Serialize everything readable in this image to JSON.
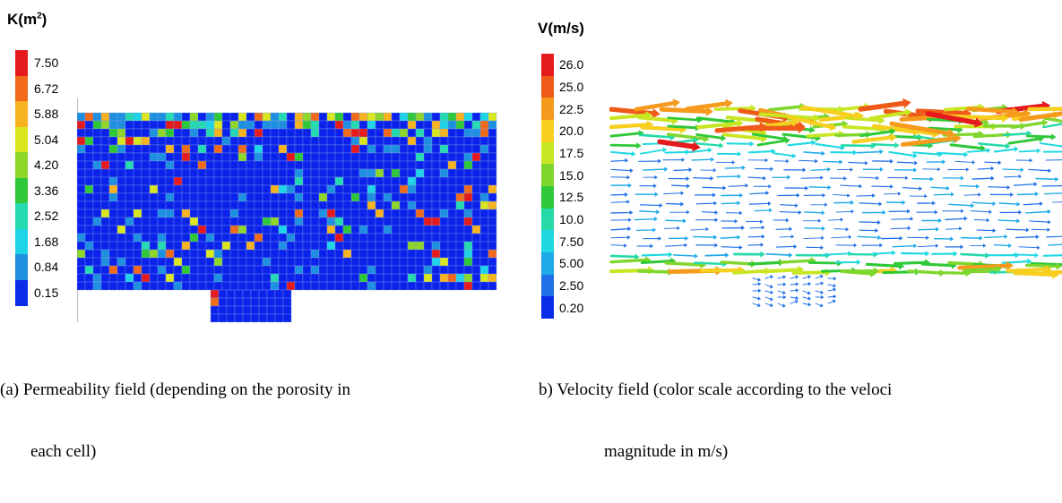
{
  "panel_a": {
    "unit_label": "K(m",
    "unit_superscript": "2",
    "unit_close": ")",
    "colorbar_labels": [
      "7.50",
      "6.72",
      "5.88",
      "5.04",
      "4.20",
      "3.36",
      "2.52",
      "1.68",
      "0.84",
      "0.15"
    ],
    "colorbar_colors": [
      "#e41a1c",
      "#f06a1a",
      "#f6b21f",
      "#d9e620",
      "#8ed62a",
      "#2fc838",
      "#25d9b0",
      "#1fd4e6",
      "#1f8fe0",
      "#0a2de8"
    ],
    "caption_line1": "(a) Permeability field (depending on the porosity in",
    "caption_line2": "each cell)"
  },
  "panel_b": {
    "unit_label": "V(m/s)",
    "colorbar_labels": [
      "26.0",
      "25.0",
      "22.5",
      "20.0",
      "17.5",
      "15.0",
      "12.5",
      "10.0",
      "7.50",
      "5.00",
      "2.50",
      "0.20"
    ],
    "colorbar_colors": [
      "#e41a1c",
      "#f05a18",
      "#f69a1d",
      "#f6cf1f",
      "#c8e623",
      "#7fd62c",
      "#2fc838",
      "#25d9a8",
      "#1fd8e2",
      "#1fa9ea",
      "#1f6fe6",
      "#0a2de8"
    ],
    "caption_line1": "b) Velocity field (color scale according to the veloci",
    "caption_line2": "magnitude in m/s)"
  }
}
